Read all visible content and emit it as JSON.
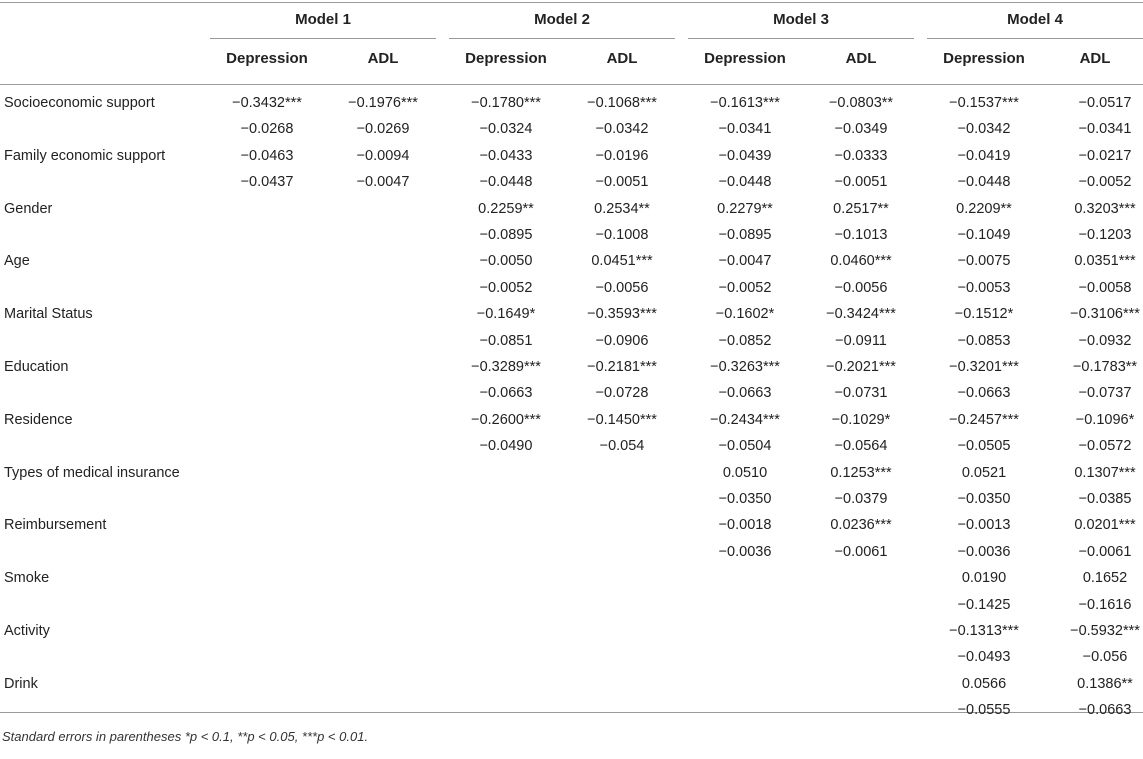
{
  "models": [
    "Model 1",
    "Model 2",
    "Model 3",
    "Model 4"
  ],
  "subheaders": [
    "Depression",
    "ADL",
    "Depression",
    "ADL",
    "Depression",
    "ADL",
    "Depression",
    "ADL"
  ],
  "rows": [
    {
      "label": "Socioeconomic support",
      "values": [
        [
          "−0.3432***",
          "−0.0268"
        ],
        [
          "−0.1976***",
          "−0.0269"
        ],
        [
          "−0.1780***",
          "−0.0324"
        ],
        [
          "−0.1068***",
          "−0.0342"
        ],
        [
          "−0.1613***",
          "−0.0341"
        ],
        [
          "−0.0803**",
          "−0.0349"
        ],
        [
          "−0.1537***",
          "−0.0342"
        ],
        [
          "−0.0517",
          "−0.0341"
        ]
      ]
    },
    {
      "label": "Family economic support",
      "values": [
        [
          "−0.0463",
          "−0.0437"
        ],
        [
          "−0.0094",
          "−0.0047"
        ],
        [
          "−0.0433",
          "−0.0448"
        ],
        [
          "−0.0196",
          "−0.0051"
        ],
        [
          "−0.0439",
          "−0.0448"
        ],
        [
          "−0.0333",
          "−0.0051"
        ],
        [
          "−0.0419",
          "−0.0448"
        ],
        [
          "−0.0217",
          "−0.0052"
        ]
      ]
    },
    {
      "label": "Gender",
      "values": [
        [
          "",
          ""
        ],
        [
          "",
          ""
        ],
        [
          "0.2259**",
          "−0.0895"
        ],
        [
          "0.2534**",
          "−0.1008"
        ],
        [
          "0.2279**",
          "−0.0895"
        ],
        [
          "0.2517**",
          "−0.1013"
        ],
        [
          "0.2209**",
          "−0.1049"
        ],
        [
          "0.3203***",
          "−0.1203"
        ]
      ]
    },
    {
      "label": "Age",
      "values": [
        [
          "",
          ""
        ],
        [
          "",
          ""
        ],
        [
          "−0.0050",
          "−0.0052"
        ],
        [
          "0.0451***",
          "−0.0056"
        ],
        [
          "−0.0047",
          "−0.0052"
        ],
        [
          "0.0460***",
          "−0.0056"
        ],
        [
          "−0.0075",
          "−0.0053"
        ],
        [
          "0.0351***",
          "−0.0058"
        ]
      ]
    },
    {
      "label": "Marital Status",
      "values": [
        [
          "",
          ""
        ],
        [
          "",
          ""
        ],
        [
          "−0.1649*",
          "−0.0851"
        ],
        [
          "−0.3593***",
          "−0.0906"
        ],
        [
          "−0.1602*",
          "−0.0852"
        ],
        [
          "−0.3424***",
          "−0.0911"
        ],
        [
          "−0.1512*",
          "−0.0853"
        ],
        [
          "−0.3106***",
          "−0.0932"
        ]
      ]
    },
    {
      "label": "Education",
      "values": [
        [
          "",
          ""
        ],
        [
          "",
          ""
        ],
        [
          "−0.3289***",
          "−0.0663"
        ],
        [
          "−0.2181***",
          "−0.0728"
        ],
        [
          "−0.3263***",
          "−0.0663"
        ],
        [
          "−0.2021***",
          "−0.0731"
        ],
        [
          "−0.3201***",
          "−0.0663"
        ],
        [
          "−0.1783**",
          "−0.0737"
        ]
      ]
    },
    {
      "label": "Residence",
      "values": [
        [
          "",
          ""
        ],
        [
          "",
          ""
        ],
        [
          "−0.2600***",
          "−0.0490"
        ],
        [
          "−0.1450***",
          "−0.054"
        ],
        [
          "−0.2434***",
          "−0.0504"
        ],
        [
          "−0.1029*",
          "−0.0564"
        ],
        [
          "−0.2457***",
          "−0.0505"
        ],
        [
          "−0.1096*",
          "−0.0572"
        ]
      ]
    },
    {
      "label": "Types of medical insurance",
      "values": [
        [
          "",
          ""
        ],
        [
          "",
          ""
        ],
        [
          "",
          ""
        ],
        [
          "",
          ""
        ],
        [
          "0.0510",
          "−0.0350"
        ],
        [
          "0.1253***",
          "−0.0379"
        ],
        [
          "0.0521",
          "−0.0350"
        ],
        [
          "0.1307***",
          "−0.0385"
        ]
      ]
    },
    {
      "label": "Reimbursement",
      "values": [
        [
          "",
          ""
        ],
        [
          "",
          ""
        ],
        [
          "",
          ""
        ],
        [
          "",
          ""
        ],
        [
          "−0.0018",
          "−0.0036"
        ],
        [
          "0.0236***",
          "−0.0061"
        ],
        [
          "−0.0013",
          "−0.0036"
        ],
        [
          "0.0201***",
          "−0.0061"
        ]
      ]
    },
    {
      "label": "Smoke",
      "values": [
        [
          "",
          ""
        ],
        [
          "",
          ""
        ],
        [
          "",
          ""
        ],
        [
          "",
          ""
        ],
        [
          "",
          ""
        ],
        [
          "",
          ""
        ],
        [
          "0.0190",
          "−0.1425"
        ],
        [
          "0.1652",
          "−0.1616"
        ]
      ]
    },
    {
      "label": "Activity",
      "values": [
        [
          "",
          ""
        ],
        [
          "",
          ""
        ],
        [
          "",
          ""
        ],
        [
          "",
          ""
        ],
        [
          "",
          ""
        ],
        [
          "",
          ""
        ],
        [
          "−0.1313***",
          "−0.0493"
        ],
        [
          "−0.5932***",
          "−0.056"
        ]
      ]
    },
    {
      "label": "Drink",
      "values": [
        [
          "",
          ""
        ],
        [
          "",
          ""
        ],
        [
          "",
          ""
        ],
        [
          "",
          ""
        ],
        [
          "",
          ""
        ],
        [
          "",
          ""
        ],
        [
          "0.0566",
          "−0.0555"
        ],
        [
          "0.1386**",
          "−0.0663"
        ]
      ]
    }
  ],
  "note": "Standard errors in parentheses *p < 0.1, **p < 0.05, ***p < 0.01."
}
